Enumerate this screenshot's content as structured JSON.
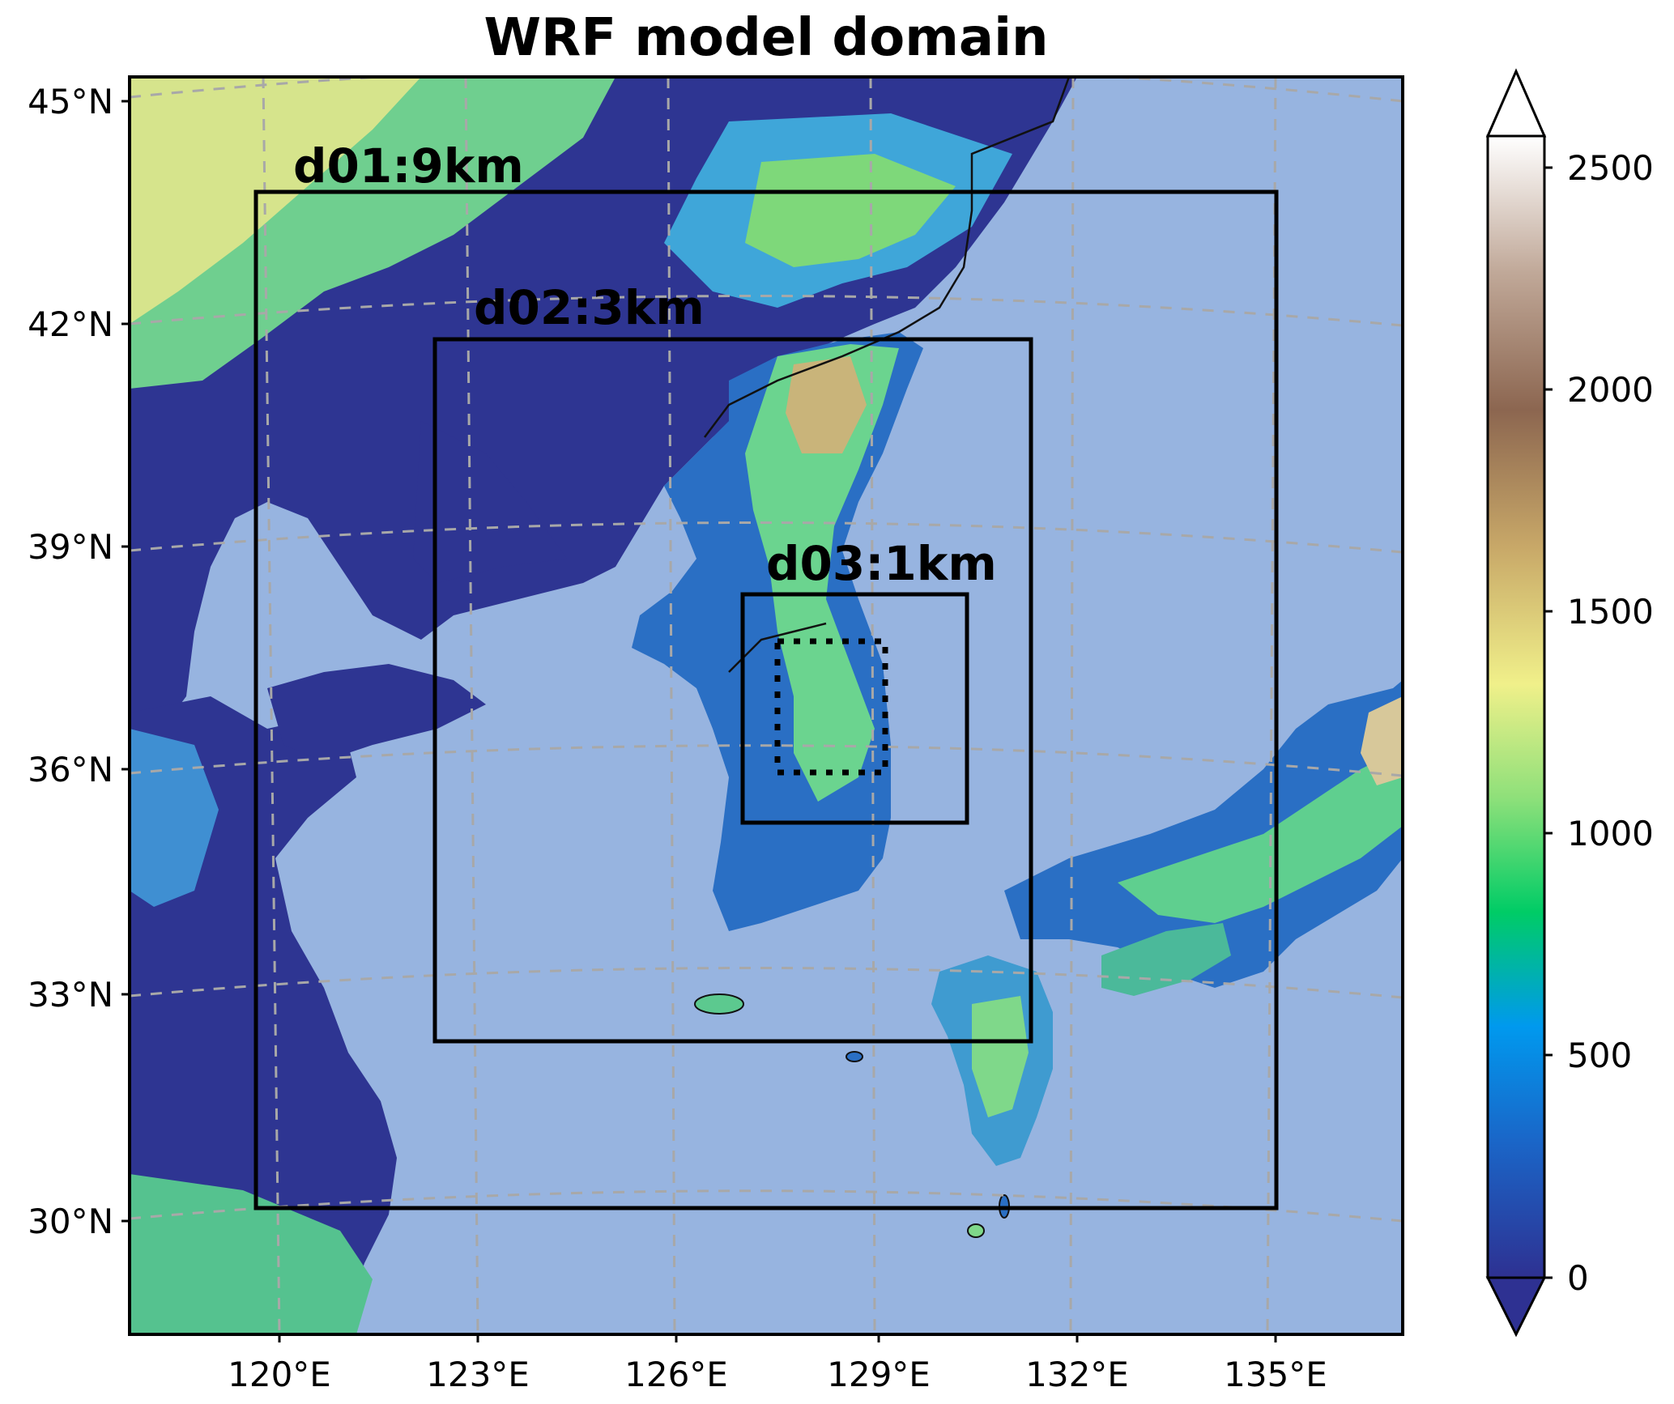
{
  "title": "WRF model domain",
  "lat_labels": [
    "45°N",
    "42°N",
    "39°N",
    "36°N",
    "33°N",
    "30°N"
  ],
  "lon_labels": [
    "120°E",
    "123°E",
    "126°E",
    "129°E",
    "132°E",
    "135°E"
  ],
  "domains": [
    {
      "name": "d01",
      "label": "d01:9km"
    },
    {
      "name": "d02",
      "label": "d02:3km"
    },
    {
      "name": "d03",
      "label": "d03:1km"
    }
  ],
  "colorbar": {
    "ticks": [
      "0",
      "500",
      "1000",
      "1500",
      "2000",
      "2500"
    ],
    "colors": [
      "#2e3192",
      "#1a66c8",
      "#0099ee",
      "#00cc66",
      "#8ee07a",
      "#f0f08a",
      "#c8a868",
      "#8c6650",
      "#c0a898",
      "#ffffff"
    ]
  },
  "colors": {
    "sea": "#97b4e0",
    "lowland": "#2e3592"
  }
}
